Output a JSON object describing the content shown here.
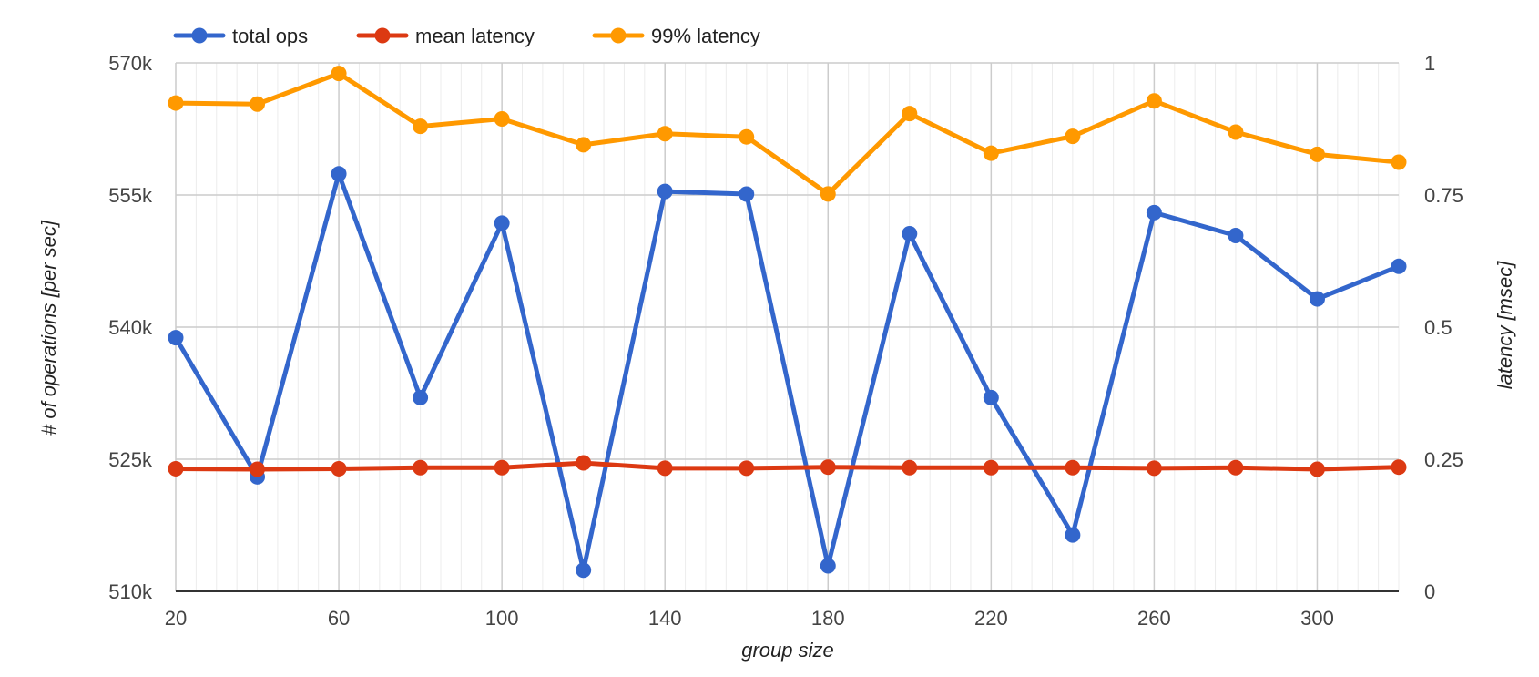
{
  "chart_data": {
    "type": "line",
    "xlabel": "group size",
    "ylabel": "# of operations [per sec]",
    "y2label": "latency [msec]",
    "x": [
      20,
      40,
      60,
      80,
      100,
      120,
      140,
      160,
      180,
      200,
      220,
      240,
      260,
      280,
      300,
      320
    ],
    "xlim": [
      20,
      320
    ],
    "x_ticks": [
      20,
      60,
      100,
      140,
      180,
      220,
      260,
      300
    ],
    "x_tick_labels": [
      "20",
      "60",
      "100",
      "140",
      "180",
      "220",
      "260",
      "300"
    ],
    "x_minor_step": 5,
    "ylim": [
      510000,
      570000
    ],
    "y_ticks": [
      510000,
      525000,
      540000,
      555000,
      570000
    ],
    "y_tick_labels": [
      "510k",
      "525k",
      "540k",
      "555k",
      "570k"
    ],
    "y2lim": [
      0,
      1
    ],
    "y2_ticks": [
      0,
      0.25,
      0.5,
      0.75,
      1
    ],
    "y2_tick_labels": [
      "0",
      "0.25",
      "0.5",
      "0.75",
      "1"
    ],
    "grid": true,
    "legend_position": "top-left",
    "series": [
      {
        "name": "total ops",
        "axis": "left",
        "color": "#3366cc",
        "values": [
          538800,
          523000,
          557400,
          532000,
          551800,
          512400,
          555400,
          555100,
          512900,
          550600,
          532000,
          516400,
          553000,
          550400,
          543200,
          546900
        ]
      },
      {
        "name": "mean latency",
        "axis": "right",
        "color": "#dc3912",
        "values": [
          0.232,
          0.231,
          0.232,
          0.234,
          0.234,
          0.243,
          0.233,
          0.233,
          0.235,
          0.234,
          0.234,
          0.234,
          0.233,
          0.234,
          0.231,
          0.235
        ]
      },
      {
        "name": "99% latency",
        "axis": "right",
        "color": "#ff9900",
        "values": [
          0.924,
          0.922,
          0.98,
          0.88,
          0.894,
          0.845,
          0.866,
          0.86,
          0.752,
          0.904,
          0.829,
          0.861,
          0.928,
          0.869,
          0.827,
          0.812
        ]
      }
    ]
  }
}
